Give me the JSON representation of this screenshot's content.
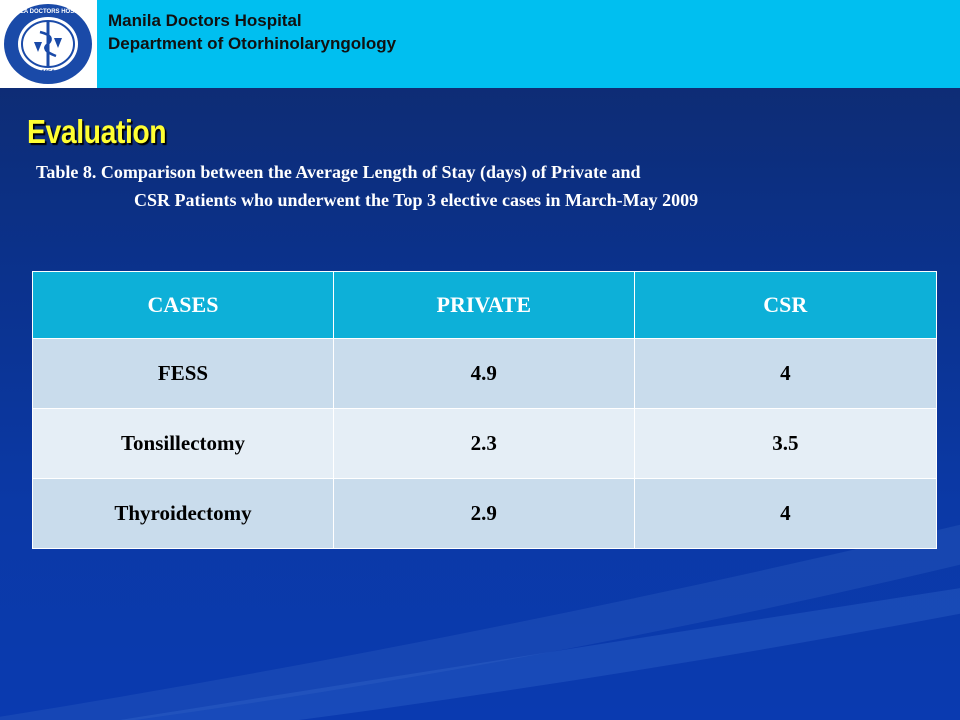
{
  "header": {
    "hospital": "Manila Doctors Hospital",
    "department": "Department of Otorhinolaryngology",
    "logo_text": "MANILA DOCTORS HOSPITAL",
    "logo_year": "1956"
  },
  "slide": {
    "title": "Evaluation",
    "caption_line1": "Table 8. Comparison between the Average Length of Stay (days) of Private and",
    "caption_line2": "CSR Patients who underwent the Top 3 elective cases in March-May 2009"
  },
  "table": {
    "headers": [
      "CASES",
      "PRIVATE",
      "CSR"
    ],
    "rows": [
      [
        "FESS",
        "4.9",
        "4"
      ],
      [
        "Tonsillectomy",
        "2.3",
        "3.5"
      ],
      [
        "Thyroidectomy",
        "2.9",
        "4"
      ]
    ]
  },
  "colors": {
    "header_bar": "#00bff0",
    "background": "#0b318a",
    "title": "#ffff33",
    "table_header": "#0db0d8",
    "row_dark": "#c9dcec",
    "row_light": "#e5eef6"
  }
}
